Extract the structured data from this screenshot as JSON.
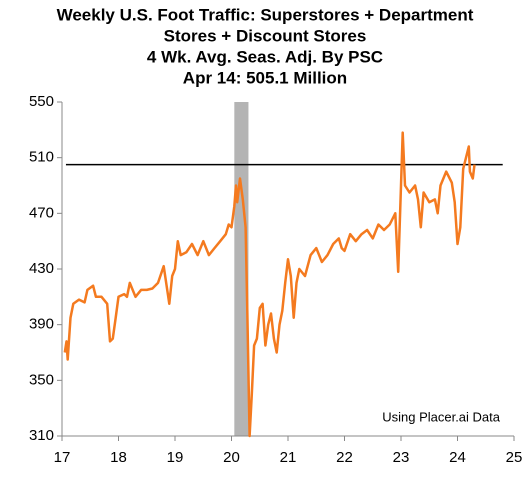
{
  "chart_data": {
    "type": "line",
    "title": [
      "Weekly U.S. Foot Traffic: Superstores + Department",
      "Stores + Discount Stores",
      "4 Wk. Avg.   Seas. Adj. By PSC",
      "Apr 14: 505.1 Million"
    ],
    "annotation": "Using Placer.ai Data",
    "x": [
      17.05,
      17.08,
      17.1,
      17.15,
      17.2,
      17.3,
      17.4,
      17.45,
      17.55,
      17.6,
      17.7,
      17.8,
      17.85,
      17.9,
      17.95,
      18.0,
      18.1,
      18.15,
      18.2,
      18.3,
      18.4,
      18.5,
      18.6,
      18.7,
      18.8,
      18.9,
      18.95,
      19.0,
      19.05,
      19.1,
      19.2,
      19.3,
      19.4,
      19.5,
      19.6,
      19.7,
      19.8,
      19.9,
      19.95,
      20.0,
      20.05,
      20.08,
      20.1,
      20.15,
      20.2,
      20.25,
      20.28,
      20.32,
      20.36,
      20.4,
      20.45,
      20.5,
      20.55,
      20.6,
      20.65,
      20.7,
      20.75,
      20.8,
      20.85,
      20.9,
      20.95,
      21.0,
      21.05,
      21.1,
      21.15,
      21.2,
      21.3,
      21.4,
      21.5,
      21.6,
      21.7,
      21.8,
      21.9,
      21.95,
      22.0,
      22.1,
      22.2,
      22.3,
      22.4,
      22.5,
      22.6,
      22.7,
      22.8,
      22.9,
      22.95,
      23.0,
      23.03,
      23.07,
      23.15,
      23.25,
      23.3,
      23.35,
      23.4,
      23.5,
      23.6,
      23.65,
      23.7,
      23.8,
      23.9,
      23.95,
      24.0,
      24.05,
      24.1,
      24.15,
      24.2,
      24.22,
      24.27,
      24.3
    ],
    "series": [
      {
        "color": "#f47a1f",
        "values": [
          370,
          378,
          365,
          395,
          405,
          408,
          406,
          415,
          418,
          410,
          410,
          405,
          378,
          380,
          395,
          410,
          412,
          410,
          420,
          410,
          415,
          415,
          416,
          420,
          432,
          405,
          425,
          430,
          450,
          440,
          442,
          448,
          440,
          450,
          440,
          445,
          450,
          455,
          462,
          460,
          475,
          490,
          478,
          495,
          480,
          460,
          400,
          310,
          340,
          375,
          380,
          402,
          405,
          375,
          390,
          398,
          380,
          370,
          390,
          400,
          420,
          437,
          425,
          395,
          420,
          430,
          425,
          440,
          445,
          435,
          440,
          448,
          452,
          445,
          443,
          455,
          450,
          455,
          458,
          452,
          462,
          458,
          462,
          470,
          428,
          490,
          528,
          490,
          485,
          490,
          480,
          460,
          485,
          478,
          480,
          470,
          490,
          500,
          492,
          478,
          448,
          460,
          502,
          510,
          518,
          500,
          495,
          505
        ]
      }
    ],
    "reference_line": 505,
    "shaded_x": [
      20.05,
      20.3
    ],
    "xlim": [
      17,
      25
    ],
    "xticks": [
      17,
      18,
      19,
      20,
      21,
      22,
      23,
      24,
      25
    ],
    "ylim": [
      310,
      550
    ],
    "yticks": [
      310,
      350,
      390,
      430,
      470,
      510,
      550
    ]
  }
}
